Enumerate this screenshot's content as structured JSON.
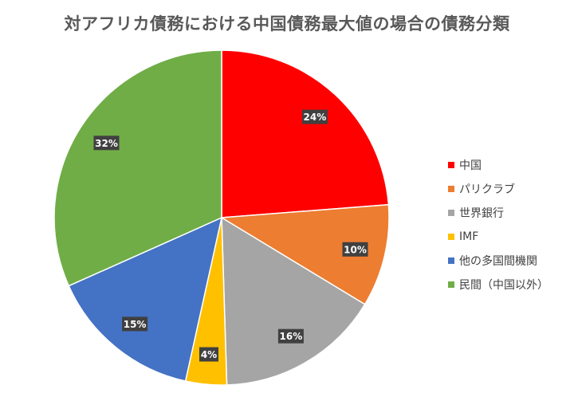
{
  "chart_data": {
    "type": "pie",
    "title": "対アフリカ債務における中国債務最大値の場合の債務分類",
    "categories": [
      "中国",
      "パリクラブ",
      "世界銀行",
      "IMF",
      "他の多国間機関",
      "民間（中国以外）"
    ],
    "values": [
      24,
      10,
      16,
      4,
      15,
      32
    ],
    "data_labels": [
      "24%",
      "10%",
      "16%",
      "4%",
      "15%",
      "32%"
    ],
    "colors": [
      "#ff0000",
      "#ed7d31",
      "#a5a5a5",
      "#ffc000",
      "#4472c4",
      "#70ad47"
    ],
    "start_angle_deg": 0,
    "direction": "clockwise",
    "legend_position": "right"
  }
}
